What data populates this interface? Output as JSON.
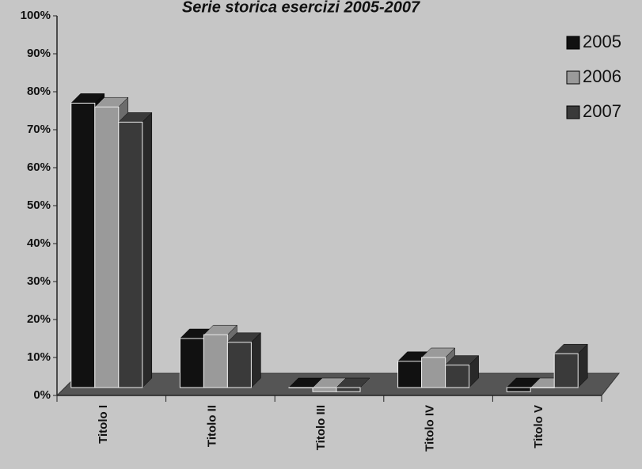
{
  "chart_data": {
    "type": "bar3d",
    "title": "Serie storica esercizi 2005-2007",
    "categories": [
      "Titolo I",
      "Titolo II",
      "Titolo III",
      "Titolo IV",
      "Titolo V"
    ],
    "series": [
      {
        "name": "2005",
        "color": "#111111",
        "values": [
          77,
          15,
          2,
          9,
          1
        ]
      },
      {
        "name": "2006",
        "color": "#9a9a9a",
        "values": [
          76,
          16,
          1,
          10,
          2
        ]
      },
      {
        "name": "2007",
        "color": "#3a3a3a",
        "values": [
          72,
          14,
          1,
          8,
          11
        ]
      }
    ],
    "ylim": [
      0,
      100
    ],
    "yticks": [
      {
        "value": 0,
        "label": "0%"
      },
      {
        "value": 10,
        "label": "10%"
      },
      {
        "value": 20,
        "label": "20%"
      },
      {
        "value": 30,
        "label": "30%"
      },
      {
        "value": 40,
        "label": "40%"
      },
      {
        "value": 50,
        "label": "50%"
      },
      {
        "value": 60,
        "label": "60%"
      },
      {
        "value": 70,
        "label": "70%"
      },
      {
        "value": 80,
        "label": "80%"
      },
      {
        "value": 90,
        "label": "90%"
      },
      {
        "value": 100,
        "label": "100%"
      }
    ],
    "legend": "upper right"
  }
}
